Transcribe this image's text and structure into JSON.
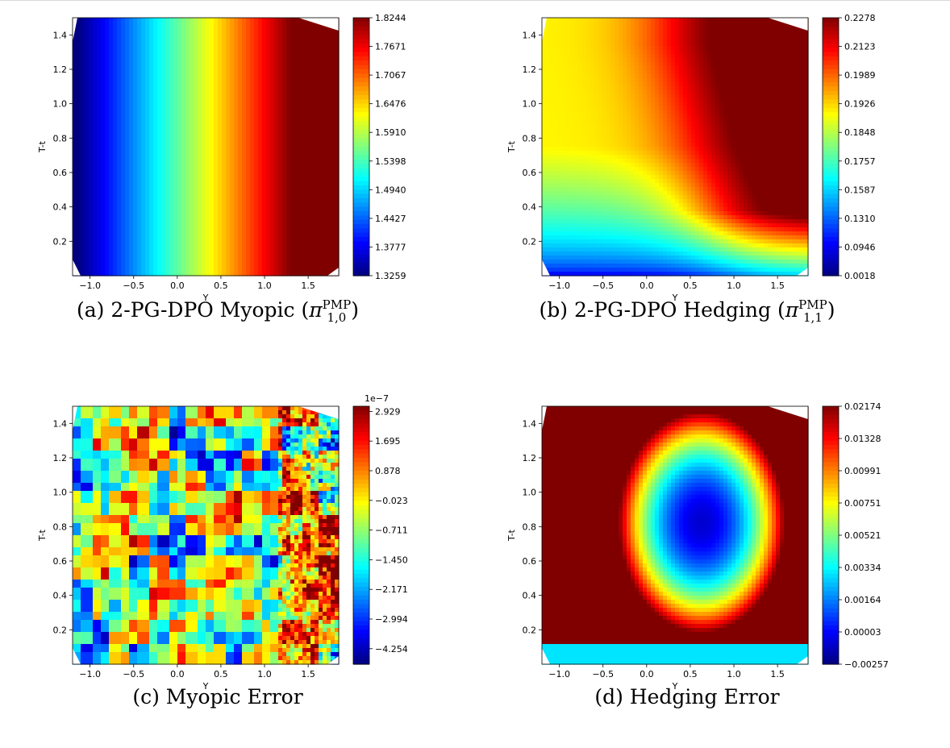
{
  "chart_data": [
    {
      "type": "heatmap",
      "panel": "a",
      "caption": "(a) 2-PG-DPO Myopic",
      "caption_symbol": {
        "base": "π",
        "superscript": "PMP",
        "subscript": "1,0"
      },
      "xlabel": "Y",
      "ylabel": "T-t",
      "xlim": [
        -1.2,
        1.85
      ],
      "ylim": [
        0,
        1.5
      ],
      "xticks": [
        "−1.0",
        "−0.5",
        "0.0",
        "0.5",
        "1.0",
        "1.5"
      ],
      "yticks": [
        "0.2",
        "0.4",
        "0.6",
        "0.8",
        "1.0",
        "1.2",
        "1.4"
      ],
      "colorbar_ticks": [
        "1.3259",
        "1.3777",
        "1.4427",
        "1.4940",
        "1.5398",
        "1.5910",
        "1.6476",
        "1.7067",
        "1.7671",
        "1.8244"
      ],
      "colorbar_offset": "",
      "colormap": "jet",
      "pattern": "horizontal_gradient"
    },
    {
      "type": "heatmap",
      "panel": "b",
      "caption": "(b) 2-PG-DPO Hedging",
      "caption_symbol": {
        "base": "π",
        "superscript": "PMP",
        "subscript": "1,1"
      },
      "xlabel": "Y",
      "ylabel": "T-t",
      "xlim": [
        -1.2,
        1.85
      ],
      "ylim": [
        0,
        1.5
      ],
      "xticks": [
        "−1.0",
        "−0.5",
        "0.0",
        "0.5",
        "1.0",
        "1.5"
      ],
      "yticks": [
        "0.2",
        "0.4",
        "0.6",
        "0.8",
        "1.0",
        "1.2",
        "1.4"
      ],
      "colorbar_ticks": [
        "0.0018",
        "0.0946",
        "0.1310",
        "0.1587",
        "0.1757",
        "0.1848",
        "0.1926",
        "0.1989",
        "0.2123",
        "0.2278"
      ],
      "colorbar_offset": "",
      "colormap": "jet",
      "pattern": "hedging_surface"
    },
    {
      "type": "heatmap",
      "panel": "c",
      "caption": "(c) Myopic Error",
      "caption_symbol": null,
      "xlabel": "Y",
      "ylabel": "T-t",
      "xlim": [
        -1.2,
        1.85
      ],
      "ylim": [
        0,
        1.5
      ],
      "xticks": [
        "−1.0",
        "−0.5",
        "0.0",
        "0.5",
        "1.0",
        "1.5"
      ],
      "yticks": [
        "0.2",
        "0.4",
        "0.6",
        "0.8",
        "1.0",
        "1.2",
        "1.4"
      ],
      "colorbar_ticks": [
        "−4.254",
        "−2.994",
        "−2.171",
        "−1.450",
        "−0.711",
        "−0.023",
        "0.878",
        "1.695",
        "2.929"
      ],
      "colorbar_offset": "1e−7",
      "colormap": "jet",
      "pattern": "noise"
    },
    {
      "type": "heatmap",
      "panel": "d",
      "caption": "(d) Hedging Error",
      "caption_symbol": null,
      "xlabel": "Y",
      "ylabel": "T-t",
      "xlim": [
        -1.2,
        1.85
      ],
      "ylim": [
        0,
        1.5
      ],
      "xticks": [
        "−1.0",
        "−0.5",
        "0.0",
        "0.5",
        "1.0",
        "1.5"
      ],
      "yticks": [
        "0.2",
        "0.4",
        "0.6",
        "0.8",
        "1.0",
        "1.2",
        "1.4"
      ],
      "colorbar_ticks": [
        "−0.00257",
        "0.00003",
        "0.00164",
        "0.00334",
        "0.00521",
        "0.00751",
        "0.00991",
        "0.01328",
        "0.02174"
      ],
      "colorbar_offset": "",
      "colormap": "jet",
      "pattern": "error_blob"
    }
  ]
}
